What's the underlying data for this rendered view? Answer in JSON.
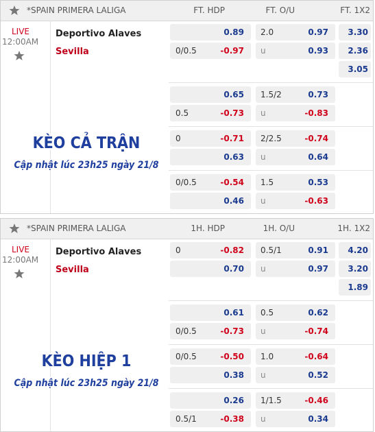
{
  "panels": [
    {
      "header": {
        "league": "*SPAIN PRIMERA LALIGA",
        "columns": [
          "FT. HDP",
          "FT. O/U",
          "FT. 1X2"
        ]
      },
      "match": {
        "status": "LIVE",
        "time": "12:00AM",
        "home": "Deportivo Alaves",
        "away": "Sevilla"
      },
      "overlay": {
        "title": "KÈO CẢ TRẬN",
        "subtitle": "Cập nhật lúc 23h25 ngày 21/8"
      },
      "groups": [
        {
          "rows": [
            {
              "hdp": "0.89",
              "ou_line": "2.0",
              "ou": "0.97",
              "x12": "3.30"
            },
            {
              "hdp_line": "0/0.5",
              "hdp": "-0.97",
              "ou_line": "u",
              "ou": "0.93",
              "x12": "2.36"
            },
            {
              "x12": "3.05"
            }
          ]
        },
        {
          "rows": [
            {
              "hdp": "0.65",
              "ou_line": "1.5/2",
              "ou": "0.73"
            },
            {
              "hdp_line": "0.5",
              "hdp": "-0.73",
              "ou_line": "u",
              "ou": "-0.83"
            }
          ]
        },
        {
          "rows": [
            {
              "hdp_line": "0",
              "hdp": "-0.71",
              "ou_line": "2/2.5",
              "ou": "-0.74"
            },
            {
              "hdp": "0.63",
              "ou_line": "u",
              "ou": "0.64"
            }
          ]
        },
        {
          "rows": [
            {
              "hdp_line": "0/0.5",
              "hdp": "-0.54",
              "ou_line": "1.5",
              "ou": "0.53"
            },
            {
              "hdp": "0.46",
              "ou_line": "u",
              "ou": "-0.63"
            }
          ]
        }
      ]
    },
    {
      "header": {
        "league": "*SPAIN PRIMERA LALIGA",
        "columns": [
          "1H. HDP",
          "1H. O/U",
          "1H. 1X2"
        ]
      },
      "match": {
        "status": "LIVE",
        "time": "12:00AM",
        "home": "Deportivo Alaves",
        "away": "Sevilla"
      },
      "overlay": {
        "title": "KÈO HIỆP 1",
        "subtitle": "Cập nhật lúc 23h25 ngày 21/8"
      },
      "groups": [
        {
          "rows": [
            {
              "hdp_line": "0",
              "hdp": "-0.82",
              "ou_line": "0.5/1",
              "ou": "0.91",
              "x12": "4.20"
            },
            {
              "hdp": "0.70",
              "ou_line": "u",
              "ou": "0.97",
              "x12": "3.20"
            },
            {
              "x12": "1.89"
            }
          ]
        },
        {
          "rows": [
            {
              "hdp": "0.61",
              "ou_line": "0.5",
              "ou": "0.62"
            },
            {
              "hdp_line": "0/0.5",
              "hdp": "-0.73",
              "ou_line": "u",
              "ou": "-0.74"
            }
          ]
        },
        {
          "rows": [
            {
              "hdp_line": "0/0.5",
              "hdp": "-0.50",
              "ou_line": "1.0",
              "ou": "-0.64"
            },
            {
              "hdp": "0.38",
              "ou_line": "u",
              "ou": "0.52"
            }
          ]
        },
        {
          "rows": [
            {
              "hdp": "0.26",
              "ou_line": "1/1.5",
              "ou": "-0.46"
            },
            {
              "hdp_line": "0.5/1",
              "hdp": "-0.38",
              "ou_line": "u",
              "ou": "0.34"
            }
          ]
        }
      ]
    }
  ]
}
